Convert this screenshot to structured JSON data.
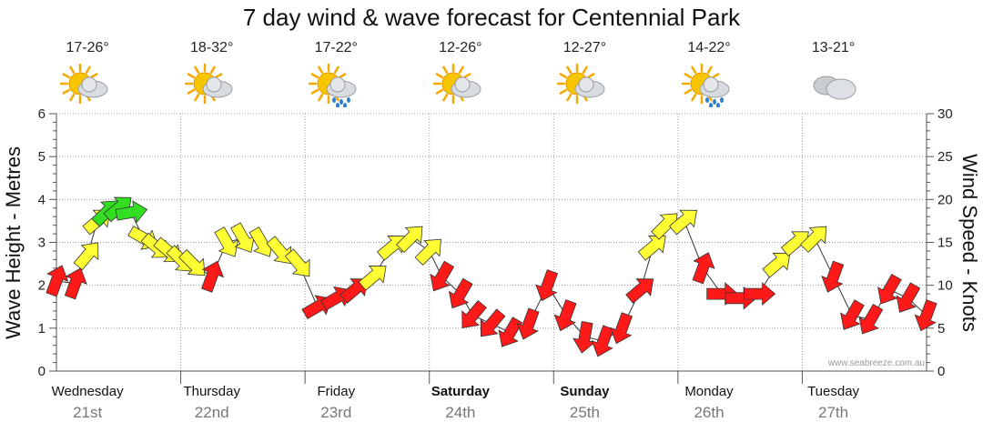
{
  "title": "7 day wind & wave forecast for Centennial Park",
  "credit": "www.seabreeze.com.au",
  "days": [
    {
      "name": "Wednesday",
      "date": "21st",
      "temp": "17-26°",
      "icon": "partly-cloudy-sun-icon",
      "bold": false
    },
    {
      "name": "Thursday",
      "date": "22nd",
      "temp": "18-32°",
      "icon": "partly-cloudy-sun-icon",
      "bold": false
    },
    {
      "name": "Friday",
      "date": "23rd",
      "temp": "17-22°",
      "icon": "sun-cloud-rain-icon",
      "bold": false
    },
    {
      "name": "Saturday",
      "date": "24th",
      "temp": "12-26°",
      "icon": "partly-cloudy-sun-icon",
      "bold": true
    },
    {
      "name": "Sunday",
      "date": "25th",
      "temp": "12-27°",
      "icon": "partly-cloudy-sun-icon",
      "bold": true
    },
    {
      "name": "Monday",
      "date": "26th",
      "temp": "14-22°",
      "icon": "sun-cloud-rain-icon",
      "bold": false
    },
    {
      "name": "Tuesday",
      "date": "27th",
      "temp": "13-21°",
      "icon": "cloudy-icon",
      "bold": false
    }
  ],
  "colors": {
    "light": "#f2f20f",
    "moderate": "#ffff33",
    "strong": "#ff1a1a",
    "green": "#33dd22",
    "grid": "#999999"
  },
  "chart_data": {
    "type": "line",
    "title": "7 day wind & wave forecast for Centennial Park",
    "xlabel": "",
    "ylabel": "Wave Height - Metres",
    "y2label": "Wind Speed - Knots",
    "ylim": [
      0,
      6
    ],
    "y2lim": [
      0,
      30
    ],
    "yticks": [
      0,
      1,
      2,
      3,
      4,
      5,
      6
    ],
    "y2ticks": [
      0,
      5,
      10,
      15,
      20,
      25,
      30
    ],
    "x_unit": "day index (0 = Wednesday 21st)",
    "xlim": [
      -0.25,
      6.75
    ],
    "series": [
      {
        "name": "Wind Speed - Knots",
        "axis": "right",
        "points": [
          {
            "x": -0.25,
            "y": 10.5,
            "dir": 200,
            "band": "strong"
          },
          {
            "x": -0.1,
            "y": 10.2,
            "dir": 200,
            "band": "strong"
          },
          {
            "x": 0.0,
            "y": 13.5,
            "dir": 220,
            "band": "moderate"
          },
          {
            "x": 0.08,
            "y": 17.5,
            "dir": 230,
            "band": "moderate"
          },
          {
            "x": 0.15,
            "y": 18.5,
            "dir": 225,
            "band": "green"
          },
          {
            "x": 0.25,
            "y": 19.0,
            "dir": 230,
            "band": "green"
          },
          {
            "x": 0.35,
            "y": 18.5,
            "dir": 260,
            "band": "green"
          },
          {
            "x": 0.45,
            "y": 15.5,
            "dir": 300,
            "band": "moderate"
          },
          {
            "x": 0.55,
            "y": 14.5,
            "dir": 310,
            "band": "moderate"
          },
          {
            "x": 0.65,
            "y": 14.0,
            "dir": 310,
            "band": "moderate"
          },
          {
            "x": 0.75,
            "y": 13.0,
            "dir": 315,
            "band": "moderate"
          },
          {
            "x": 0.85,
            "y": 12.5,
            "dir": 315,
            "band": "moderate"
          },
          {
            "x": 1.0,
            "y": 11.0,
            "dir": 200,
            "band": "strong"
          },
          {
            "x": 1.12,
            "y": 15.0,
            "dir": 330,
            "band": "moderate"
          },
          {
            "x": 1.25,
            "y": 15.5,
            "dir": 330,
            "band": "moderate"
          },
          {
            "x": 1.4,
            "y": 15.0,
            "dir": 330,
            "band": "moderate"
          },
          {
            "x": 1.55,
            "y": 14.0,
            "dir": 320,
            "band": "moderate"
          },
          {
            "x": 1.7,
            "y": 12.5,
            "dir": 320,
            "band": "moderate"
          },
          {
            "x": 1.85,
            "y": 7.5,
            "dir": 240,
            "band": "strong"
          },
          {
            "x": 2.0,
            "y": 8.5,
            "dir": 240,
            "band": "strong"
          },
          {
            "x": 2.15,
            "y": 9.5,
            "dir": 230,
            "band": "strong"
          },
          {
            "x": 2.3,
            "y": 11.0,
            "dir": 230,
            "band": "moderate"
          },
          {
            "x": 2.45,
            "y": 14.5,
            "dir": 230,
            "band": "moderate"
          },
          {
            "x": 2.6,
            "y": 15.5,
            "dir": 225,
            "band": "moderate"
          },
          {
            "x": 2.75,
            "y": 14.0,
            "dir": 225,
            "band": "moderate"
          },
          {
            "x": 2.85,
            "y": 11.0,
            "dir": 30,
            "band": "strong"
          },
          {
            "x": 3.0,
            "y": 9.0,
            "dir": 30,
            "band": "strong"
          },
          {
            "x": 3.1,
            "y": 6.5,
            "dir": 40,
            "band": "strong"
          },
          {
            "x": 3.25,
            "y": 5.5,
            "dir": 40,
            "band": "strong"
          },
          {
            "x": 3.4,
            "y": 4.5,
            "dir": 30,
            "band": "strong"
          },
          {
            "x": 3.55,
            "y": 5.5,
            "dir": 20,
            "band": "strong"
          },
          {
            "x": 3.7,
            "y": 10.0,
            "dir": 20,
            "band": "strong"
          },
          {
            "x": 3.85,
            "y": 6.5,
            "dir": 20,
            "band": "strong"
          },
          {
            "x": 4.0,
            "y": 4.0,
            "dir": 10,
            "band": "strong"
          },
          {
            "x": 4.15,
            "y": 3.5,
            "dir": 20,
            "band": "strong"
          },
          {
            "x": 4.3,
            "y": 5.0,
            "dir": 20,
            "band": "strong"
          },
          {
            "x": 4.45,
            "y": 9.5,
            "dir": 230,
            "band": "strong"
          },
          {
            "x": 4.55,
            "y": 14.5,
            "dir": 230,
            "band": "moderate"
          },
          {
            "x": 4.65,
            "y": 17.0,
            "dir": 225,
            "band": "moderate"
          },
          {
            "x": 4.8,
            "y": 17.5,
            "dir": 230,
            "band": "moderate"
          },
          {
            "x": 4.95,
            "y": 12.0,
            "dir": 200,
            "band": "strong"
          },
          {
            "x": 5.1,
            "y": 9.0,
            "dir": 270,
            "band": "strong"
          },
          {
            "x": 5.25,
            "y": 8.5,
            "dir": 270,
            "band": "strong"
          },
          {
            "x": 5.4,
            "y": 9.0,
            "dir": 270,
            "band": "strong"
          },
          {
            "x": 5.55,
            "y": 12.5,
            "dir": 230,
            "band": "moderate"
          },
          {
            "x": 5.7,
            "y": 15.0,
            "dir": 230,
            "band": "moderate"
          },
          {
            "x": 5.85,
            "y": 15.5,
            "dir": 225,
            "band": "moderate"
          },
          {
            "x": 6.0,
            "y": 11.0,
            "dir": 20,
            "band": "strong"
          },
          {
            "x": 6.15,
            "y": 6.5,
            "dir": 30,
            "band": "strong"
          },
          {
            "x": 6.3,
            "y": 6.0,
            "dir": 30,
            "band": "strong"
          },
          {
            "x": 6.45,
            "y": 9.5,
            "dir": 30,
            "band": "strong"
          },
          {
            "x": 6.6,
            "y": 8.5,
            "dir": 30,
            "band": "strong"
          },
          {
            "x": 6.75,
            "y": 6.5,
            "dir": 20,
            "band": "strong"
          }
        ]
      }
    ]
  }
}
